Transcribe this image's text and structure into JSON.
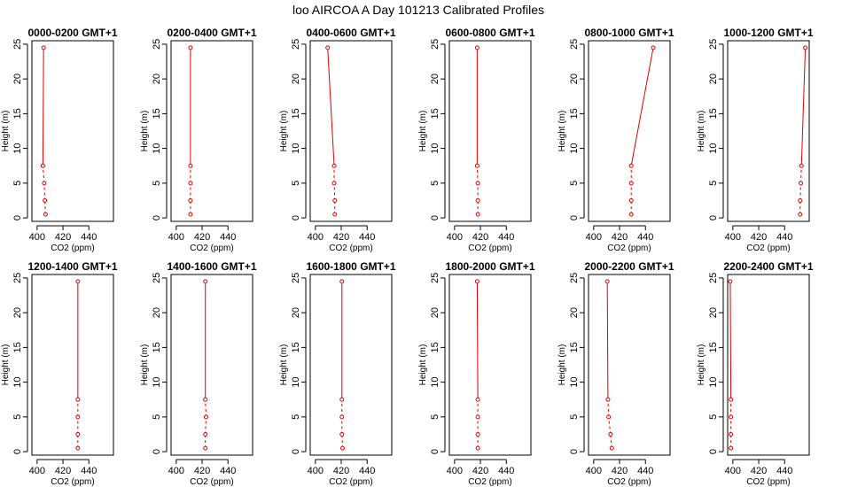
{
  "title": "loo AIRCOA A  Day 101213  Calibrated Profiles",
  "chart_data": {
    "type": "line",
    "xlabel": "CO2 (ppm)",
    "ylabel": "Height (m)",
    "x_ticks": [
      400,
      420,
      440
    ],
    "y_ticks": [
      0,
      5,
      10,
      15,
      20,
      25
    ],
    "xlim": [
      396,
      459
    ],
    "ylim": [
      -0.5,
      25.5
    ],
    "heights": [
      0.5,
      2.5,
      5,
      7.5,
      24.5
    ],
    "segments_dashed_below_m": 7.5,
    "line_color": "#e00000",
    "panels": [
      {
        "title": "0000-0200 GMT+1",
        "co2": [
          406.5,
          406,
          405.5,
          404.5,
          405
        ]
      },
      {
        "title": "0200-0400 GMT+1",
        "co2": [
          411,
          411,
          411,
          411,
          411
        ]
      },
      {
        "title": "0400-0600 GMT+1",
        "co2": [
          415,
          415,
          414.5,
          414.5,
          409.5
        ]
      },
      {
        "title": "0600-0800 GMT+1",
        "co2": [
          418,
          418,
          418,
          417.5,
          417.5
        ]
      },
      {
        "title": "0800-1000 GMT+1",
        "co2": [
          429,
          429,
          429,
          429,
          446
        ]
      },
      {
        "title": "1000-1200 GMT+1",
        "co2": [
          452,
          452,
          452.5,
          453,
          456
        ]
      },
      {
        "title": "1200-1400 GMT+1",
        "co2": [
          431.5,
          431.5,
          431.5,
          431.5,
          431.5
        ]
      },
      {
        "title": "1400-1600 GMT+1",
        "co2": [
          422.5,
          422.5,
          423,
          422.5,
          422.5
        ]
      },
      {
        "title": "1600-1800 GMT+1",
        "co2": [
          421,
          420.5,
          420.5,
          420.5,
          420.5
        ]
      },
      {
        "title": "1800-2000 GMT+1",
        "co2": [
          418,
          418,
          418,
          418,
          417.5
        ]
      },
      {
        "title": "2000-2200 GMT+1",
        "co2": [
          414,
          413,
          411.5,
          411,
          410.5
        ]
      },
      {
        "title": "2200-2400 GMT+1",
        "co2": [
          398.5,
          398.5,
          398.5,
          398.5,
          398
        ]
      }
    ]
  }
}
